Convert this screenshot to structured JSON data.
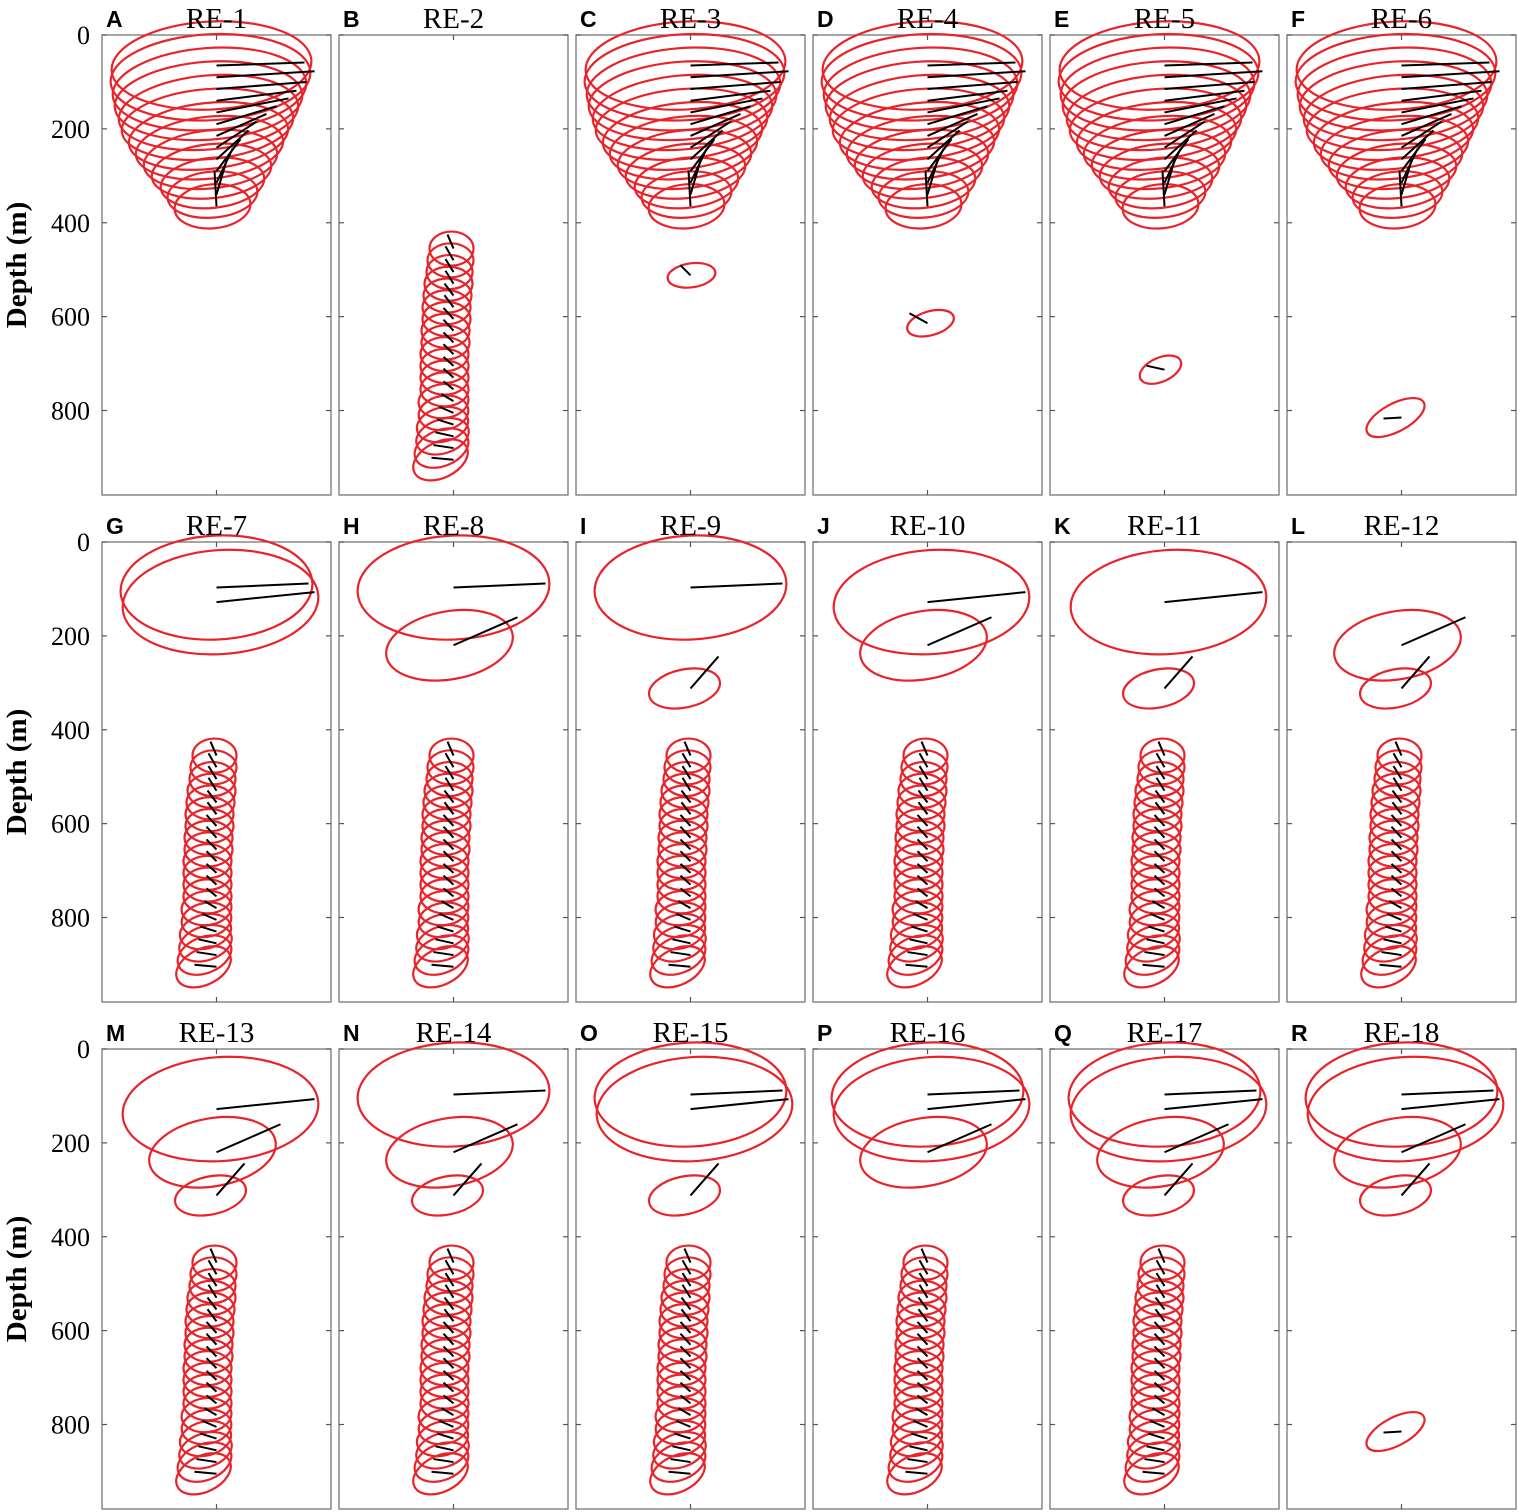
{
  "chart_data": {
    "type": "hodograph_ellipses",
    "ylabel": "Depth (m)",
    "yticks": [
      0,
      200,
      400,
      600,
      800
    ],
    "ylim": [
      0,
      980
    ],
    "yaxis_direction": "down",
    "ellipse_color": "#e8242a",
    "line_color": "#000000",
    "note": "Each ellipse: center depth (m), semi-major a, semi-minor b, rotation (deg, clockwise); black segment = current vector drawn from panel center line",
    "panels": [
      {
        "label": "A",
        "title": "RE-1",
        "groups": [
          "upper"
        ]
      },
      {
        "label": "B",
        "title": "RE-2",
        "groups": [
          "deep"
        ]
      },
      {
        "label": "C",
        "title": "RE-3",
        "groups": [
          "upper",
          "i520"
        ]
      },
      {
        "label": "D",
        "title": "RE-4",
        "groups": [
          "upper",
          "i620"
        ]
      },
      {
        "label": "E",
        "title": "RE-5",
        "groups": [
          "upper",
          "i715"
        ]
      },
      {
        "label": "F",
        "title": "RE-6",
        "groups": [
          "upper",
          "i815"
        ]
      },
      {
        "label": "G",
        "title": "RE-7",
        "groups": [
          "s65",
          "s115",
          "deep"
        ]
      },
      {
        "label": "H",
        "title": "RE-8",
        "groups": [
          "s65",
          "s215",
          "deep"
        ]
      },
      {
        "label": "I",
        "title": "RE-9",
        "groups": [
          "s65",
          "s315",
          "deep"
        ]
      },
      {
        "label": "J",
        "title": "RE-10",
        "groups": [
          "s115",
          "s215",
          "deep"
        ]
      },
      {
        "label": "K",
        "title": "RE-11",
        "groups": [
          "s115",
          "s315",
          "deep"
        ]
      },
      {
        "label": "L",
        "title": "RE-12",
        "groups": [
          "s215",
          "s315",
          "deep"
        ]
      },
      {
        "label": "M",
        "title": "RE-13",
        "groups": [
          "s115",
          "s215",
          "s315",
          "deep"
        ]
      },
      {
        "label": "N",
        "title": "RE-14",
        "groups": [
          "s65",
          "s215",
          "s315",
          "deep"
        ]
      },
      {
        "label": "O",
        "title": "RE-15",
        "groups": [
          "s65",
          "s115",
          "s315",
          "deep"
        ]
      },
      {
        "label": "P",
        "title": "RE-16",
        "groups": [
          "s65",
          "s115",
          "s215",
          "deep"
        ]
      },
      {
        "label": "Q",
        "title": "RE-17",
        "groups": [
          "s65",
          "s115",
          "s215",
          "s315",
          "deep"
        ]
      },
      {
        "label": "R",
        "title": "RE-18",
        "groups": [
          "s65",
          "s115",
          "s215",
          "s315",
          "i815"
        ]
      }
    ],
    "groups": {
      "upper": {
        "depths": [
          65,
          90,
          115,
          140,
          165,
          190,
          215,
          240,
          265,
          290,
          315,
          340,
          365
        ],
        "cx": [
          -5,
          -6,
          -7,
          -8,
          -8,
          -9,
          -8,
          -7,
          -6,
          -5,
          -4,
          -4,
          -4
        ],
        "a": [
          100,
          100,
          97,
          94,
          90,
          86,
          80,
          74,
          67,
          60,
          52,
          45,
          38
        ],
        "b": [
          44,
          43,
          41,
          39,
          37,
          35,
          33,
          31,
          29,
          27,
          25,
          23,
          22
        ],
        "rot": [
          -3,
          -3,
          -4,
          -4,
          -5,
          -5,
          -6,
          -6,
          -6,
          -6,
          -6,
          -5,
          -5
        ],
        "vx": [
          88,
          98,
          90,
          80,
          72,
          60,
          50,
          40,
          32,
          24,
          16,
          10,
          -2
        ],
        "vy": [
          -3,
          -6,
          -7,
          -10,
          -14,
          -18,
          -22,
          -26,
          -29,
          -32,
          -34,
          -34,
          -36
        ]
      },
      "deep": {
        "depths": [
          455,
          480,
          505,
          530,
          555,
          580,
          605,
          630,
          655,
          680,
          705,
          730,
          755,
          780,
          805,
          830,
          855,
          880,
          905
        ],
        "cx": [
          -2,
          -3,
          -4,
          -5,
          -6,
          -7,
          -7,
          -8,
          -8,
          -9,
          -9,
          -9,
          -9,
          -10,
          -10,
          -11,
          -11,
          -12,
          -13
        ],
        "a": [
          22,
          23,
          23,
          24,
          24,
          24,
          24,
          24,
          24,
          24,
          24,
          24,
          24,
          25,
          25,
          26,
          27,
          28,
          29
        ],
        "b": [
          17,
          17,
          17,
          17,
          17,
          17,
          17,
          17,
          17,
          17,
          17,
          17,
          17,
          17,
          17,
          17,
          17,
          18,
          18
        ],
        "rot": [
          0,
          0,
          0,
          0,
          0,
          0,
          0,
          0,
          0,
          0,
          0,
          0,
          0,
          -6,
          -10,
          -14,
          -18,
          -22,
          -26
        ],
        "vx": [
          -6,
          -8,
          -8,
          -8,
          -9,
          -9,
          -10,
          -10,
          -10,
          -10,
          -10,
          -10,
          -10,
          -12,
          -14,
          -16,
          -18,
          -20,
          -22
        ],
        "vy": [
          -14,
          -14,
          -13,
          -13,
          -12,
          -12,
          -11,
          -11,
          -10,
          -10,
          -9,
          -9,
          -8,
          -7,
          -6,
          -5,
          -4,
          -3,
          -2
        ]
      },
      "i520": {
        "depths": [
          512
        ],
        "cx": [
          1
        ],
        "a": [
          24
        ],
        "b": [
          12
        ],
        "rot": [
          -8
        ],
        "vx": [
          -10
        ],
        "vy": [
          -10
        ]
      },
      "i620": {
        "depths": [
          614
        ],
        "cx": [
          3
        ],
        "a": [
          24
        ],
        "b": [
          12
        ],
        "rot": [
          -16
        ],
        "vx": [
          -18
        ],
        "vy": [
          -10
        ]
      },
      "i715": {
        "depths": [
          713
        ],
        "cx": [
          -4
        ],
        "a": [
          22
        ],
        "b": [
          12
        ],
        "rot": [
          -24
        ],
        "vx": [
          -18
        ],
        "vy": [
          -4
        ]
      },
      "i815": {
        "depths": [
          815
        ],
        "cx": [
          -6
        ],
        "a": [
          32
        ],
        "b": [
          14
        ],
        "rot": [
          -28
        ],
        "vx": [
          -18
        ],
        "vy": [
          1
        ]
      },
      "s65": {
        "depths": [
          97
        ],
        "cx": [
          0
        ],
        "a": [
          96
        ],
        "b": [
          52
        ],
        "rot": [
          -3
        ],
        "vx": [
          92
        ],
        "vy": [
          -4
        ]
      },
      "s115": {
        "depths": [
          128
        ],
        "cx": [
          4
        ],
        "a": [
          98
        ],
        "b": [
          52
        ],
        "rot": [
          -4
        ],
        "vx": [
          98
        ],
        "vy": [
          -10
        ]
      },
      "s215": {
        "depths": [
          220
        ],
        "cx": [
          -4
        ],
        "a": [
          64
        ],
        "b": [
          34
        ],
        "rot": [
          -10
        ],
        "vx": [
          64
        ],
        "vy": [
          -28
        ]
      },
      "s315": {
        "depths": [
          312
        ],
        "cx": [
          -6
        ],
        "a": [
          36
        ],
        "b": [
          19
        ],
        "rot": [
          -12
        ],
        "vx": [
          28
        ],
        "vy": [
          -32
        ]
      }
    }
  }
}
